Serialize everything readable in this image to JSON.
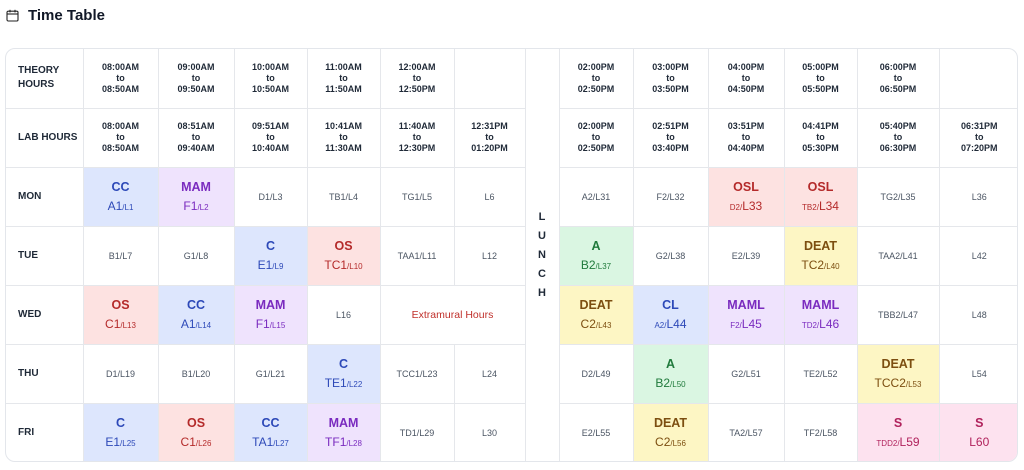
{
  "page": {
    "title": "Time Table",
    "icon": "calendar-icon"
  },
  "colors": {
    "blue": {
      "bg": "#dde6fd",
      "fg": "#2d49b8"
    },
    "purple": {
      "bg": "#efe3fd",
      "fg": "#7a2bbf"
    },
    "red": {
      "bg": "#fde2e1",
      "fg": "#b42a2a"
    },
    "green": {
      "bg": "#daf6e2",
      "fg": "#207a3c"
    },
    "yellow": {
      "bg": "#fdf6c4",
      "fg": "#7c4e10"
    },
    "pink": {
      "bg": "#fde2ef",
      "fg": "#b0225c"
    }
  },
  "timetable": {
    "theory_label": "THEORY HOURS",
    "lab_label": "LAB HOURS",
    "theory_hours": [
      {
        "from": "08:00AM",
        "to": "to",
        "till": "08:50AM"
      },
      {
        "from": "09:00AM",
        "to": "to",
        "till": "09:50AM"
      },
      {
        "from": "10:00AM",
        "to": "to",
        "till": "10:50AM"
      },
      {
        "from": "11:00AM",
        "to": "to",
        "till": "11:50AM"
      },
      {
        "from": "12:00AM",
        "to": "to",
        "till": "12:50PM"
      },
      null,
      {
        "from": "02:00PM",
        "to": "to",
        "till": "02:50PM"
      },
      {
        "from": "03:00PM",
        "to": "to",
        "till": "03:50PM"
      },
      {
        "from": "04:00PM",
        "to": "to",
        "till": "04:50PM"
      },
      {
        "from": "05:00PM",
        "to": "to",
        "till": "05:50PM"
      },
      {
        "from": "06:00PM",
        "to": "to",
        "till": "06:50PM"
      },
      null
    ],
    "lab_hours": [
      {
        "from": "08:00AM",
        "to": "to",
        "till": "08:50AM"
      },
      {
        "from": "08:51AM",
        "to": "to",
        "till": "09:40AM"
      },
      {
        "from": "09:51AM",
        "to": "to",
        "till": "10:40AM"
      },
      {
        "from": "10:41AM",
        "to": "to",
        "till": "11:30AM"
      },
      {
        "from": "11:40AM",
        "to": "to",
        "till": "12:30PM"
      },
      {
        "from": "12:31PM",
        "to": "to",
        "till": "01:20PM"
      },
      {
        "from": "02:00PM",
        "to": "to",
        "till": "02:50PM"
      },
      {
        "from": "02:51PM",
        "to": "to",
        "till": "03:40PM"
      },
      {
        "from": "03:51PM",
        "to": "to",
        "till": "04:40PM"
      },
      {
        "from": "04:41PM",
        "to": "to",
        "till": "05:30PM"
      },
      {
        "from": "05:40PM",
        "to": "to",
        "till": "06:30PM"
      },
      {
        "from": "06:31PM",
        "to": "to",
        "till": "07:20PM"
      }
    ],
    "lunch_letters": [
      "L",
      "U",
      "N",
      "C",
      "H"
    ],
    "days": [
      {
        "name": "MON",
        "cells": [
          {
            "type": "course",
            "color": "blue",
            "subject": "CC",
            "a": "A1",
            "b": "/L1",
            "big": "a"
          },
          {
            "type": "course",
            "color": "purple",
            "subject": "MAM",
            "a": "F1",
            "b": "/L2",
            "big": "a"
          },
          {
            "type": "plain",
            "text": "D1/L3"
          },
          {
            "type": "plain",
            "text": "TB1/L4"
          },
          {
            "type": "plain",
            "text": "TG1/L5"
          },
          {
            "type": "plain",
            "text": "L6"
          },
          {
            "type": "plain",
            "text": "A2/L31"
          },
          {
            "type": "plain",
            "text": "F2/L32"
          },
          {
            "type": "course",
            "color": "red",
            "subject": "OSL",
            "a": "D2/",
            "b": "L33",
            "big": "b"
          },
          {
            "type": "course",
            "color": "red",
            "subject": "OSL",
            "a": "TB2/",
            "b": "L34",
            "big": "b"
          },
          {
            "type": "plain",
            "text": "TG2/L35"
          },
          {
            "type": "plain",
            "text": "L36"
          }
        ]
      },
      {
        "name": "TUE",
        "cells": [
          {
            "type": "plain",
            "text": "B1/L7"
          },
          {
            "type": "plain",
            "text": "G1/L8"
          },
          {
            "type": "course",
            "color": "blue",
            "subject": "C",
            "a": "E1",
            "b": "/L9",
            "big": "a"
          },
          {
            "type": "course",
            "color": "red",
            "subject": "OS",
            "a": "TC1",
            "b": "/L10",
            "big": "a"
          },
          {
            "type": "plain",
            "text": "TAA1/L11"
          },
          {
            "type": "plain",
            "text": "L12"
          },
          {
            "type": "course",
            "color": "green",
            "subject": "A",
            "a": "B2",
            "b": "/L37",
            "big": "a"
          },
          {
            "type": "plain",
            "text": "G2/L38"
          },
          {
            "type": "plain",
            "text": "E2/L39"
          },
          {
            "type": "course",
            "color": "yellow",
            "subject": "DEAT",
            "a": "TC2",
            "b": "/L40",
            "big": "a"
          },
          {
            "type": "plain",
            "text": "TAA2/L41"
          },
          {
            "type": "plain",
            "text": "L42"
          }
        ]
      },
      {
        "name": "WED",
        "cells": [
          {
            "type": "course",
            "color": "red",
            "subject": "OS",
            "a": "C1",
            "b": "/L13",
            "big": "a"
          },
          {
            "type": "course",
            "color": "blue",
            "subject": "CC",
            "a": "A1",
            "b": "/L14",
            "big": "a"
          },
          {
            "type": "course",
            "color": "purple",
            "subject": "MAM",
            "a": "F1",
            "b": "/L15",
            "big": "a"
          },
          {
            "type": "plain",
            "text": "L16"
          },
          {
            "type": "extra",
            "text": "Extramural Hours",
            "span": 2
          },
          {
            "type": "course",
            "color": "yellow",
            "subject": "DEAT",
            "a": "C2",
            "b": "/L43",
            "big": "a"
          },
          {
            "type": "course",
            "color": "blue",
            "subject": "CL",
            "a": "A2/",
            "b": "L44",
            "big": "b"
          },
          {
            "type": "course",
            "color": "purple",
            "subject": "MAML",
            "a": "F2/",
            "b": "L45",
            "big": "b"
          },
          {
            "type": "course",
            "color": "purple",
            "subject": "MAML",
            "a": "TD2/",
            "b": "L46",
            "big": "b"
          },
          {
            "type": "plain",
            "text": "TBB2/L47"
          },
          {
            "type": "plain",
            "text": "L48"
          }
        ]
      },
      {
        "name": "THU",
        "cells": [
          {
            "type": "plain",
            "text": "D1/L19"
          },
          {
            "type": "plain",
            "text": "B1/L20"
          },
          {
            "type": "plain",
            "text": "G1/L21"
          },
          {
            "type": "course",
            "color": "blue",
            "subject": "C",
            "a": "TE1",
            "b": "/L22",
            "big": "a"
          },
          {
            "type": "plain",
            "text": "TCC1/L23"
          },
          {
            "type": "plain",
            "text": "L24"
          },
          {
            "type": "plain",
            "text": "D2/L49"
          },
          {
            "type": "course",
            "color": "green",
            "subject": "A",
            "a": "B2",
            "b": "/L50",
            "big": "a"
          },
          {
            "type": "plain",
            "text": "G2/L51"
          },
          {
            "type": "plain",
            "text": "TE2/L52"
          },
          {
            "type": "course",
            "color": "yellow",
            "subject": "DEAT",
            "a": "TCC2",
            "b": "/L53",
            "big": "a"
          },
          {
            "type": "plain",
            "text": "L54"
          }
        ]
      },
      {
        "name": "FRI",
        "cells": [
          {
            "type": "course",
            "color": "blue",
            "subject": "C",
            "a": "E1",
            "b": "/L25",
            "big": "a"
          },
          {
            "type": "course",
            "color": "red",
            "subject": "OS",
            "a": "C1",
            "b": "/L26",
            "big": "a"
          },
          {
            "type": "course",
            "color": "blue",
            "subject": "CC",
            "a": "TA1",
            "b": "/L27",
            "big": "a"
          },
          {
            "type": "course",
            "color": "purple",
            "subject": "MAM",
            "a": "TF1",
            "b": "/L28",
            "big": "a"
          },
          {
            "type": "plain",
            "text": "TD1/L29"
          },
          {
            "type": "plain",
            "text": "L30"
          },
          {
            "type": "plain",
            "text": "E2/L55"
          },
          {
            "type": "course",
            "color": "yellow",
            "subject": "DEAT",
            "a": "C2",
            "b": "/L56",
            "big": "a"
          },
          {
            "type": "plain",
            "text": "TA2/L57"
          },
          {
            "type": "plain",
            "text": "TF2/L58"
          },
          {
            "type": "course",
            "color": "pink",
            "subject": "S",
            "a": "TDD2/",
            "b": "L59",
            "big": "b"
          },
          {
            "type": "course",
            "color": "pink",
            "subject": "S",
            "a": "",
            "b": "L60",
            "big": "b"
          }
        ]
      }
    ]
  }
}
